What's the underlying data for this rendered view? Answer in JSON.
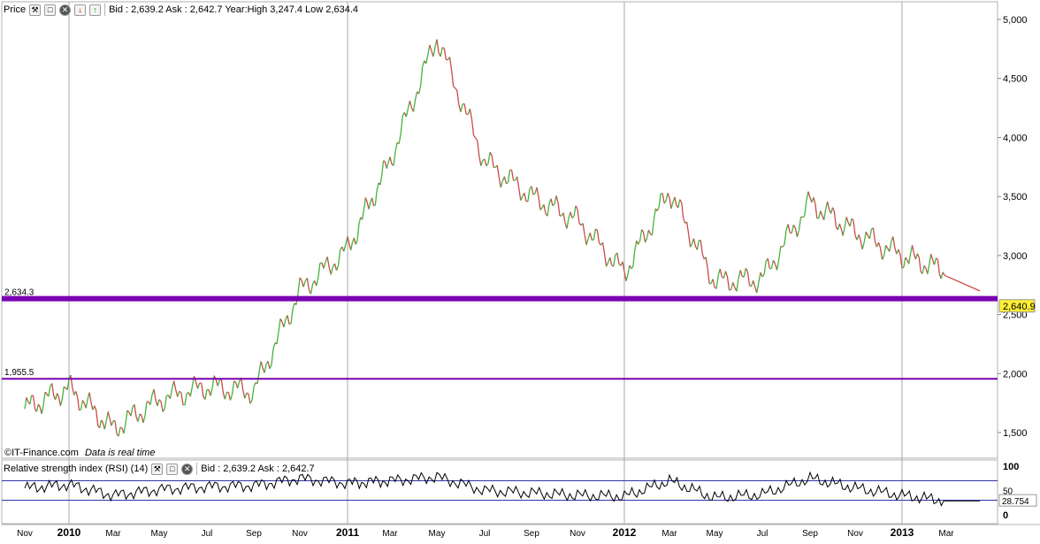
{
  "price_panel": {
    "title": "Price",
    "quote": "Bid : 2,639.2 Ask : 2,642.7 Year:High 3,247.4 Low 2,634.4",
    "watermark_source": "©IT-Finance.com",
    "watermark_note": "Data is real time",
    "last_value_badge": "2,640.9",
    "y_ticks": [
      "5,000",
      "4,500",
      "4,000",
      "3,500",
      "3,000",
      "2,500",
      "2,000",
      "1,500"
    ],
    "levels": [
      {
        "label": "2,634.3",
        "value": 2634.3,
        "color": "#7a00b3",
        "weight": "heavy"
      },
      {
        "label": "1,955.5",
        "value": 1955.5,
        "color": "#7a00b3",
        "weight": "light"
      }
    ],
    "up_color": "#44b33c",
    "down_color": "#cc4a4a"
  },
  "rsi_panel": {
    "title": "Relative strength index (RSI) (14)",
    "quote": "Bid : 2,639.2 Ask : 2,642.7",
    "y_ticks": [
      "100",
      "50",
      "0"
    ],
    "last_value_badge": "28.754",
    "bands": [
      70,
      30
    ],
    "line_color": "#000000",
    "band_color": "#3333aa",
    "overbought_fill": "#d9a0c8"
  },
  "x_axis": {
    "labels": [
      "Nov",
      "2010",
      "Mar",
      "May",
      "Jul",
      "Sep",
      "Nov",
      "2011",
      "Mar",
      "May",
      "Jul",
      "Sep",
      "Nov",
      "2012",
      "Mar",
      "May",
      "Jul",
      "Sep",
      "Nov",
      "2013",
      "Mar"
    ],
    "bold_labels": [
      "2010",
      "2011",
      "2012",
      "2013"
    ]
  },
  "chart_data": {
    "type": "line",
    "title": "",
    "xlabel": "",
    "ylabel": "",
    "ylim": [
      1350,
      5100
    ],
    "x": [
      "2009-11",
      "2010-01",
      "2010-03",
      "2010-05",
      "2010-07",
      "2010-09",
      "2010-11",
      "2011-01",
      "2011-03",
      "2011-05",
      "2011-07",
      "2011-09",
      "2011-11",
      "2012-01",
      "2012-03",
      "2012-05",
      "2012-07",
      "2012-09",
      "2012-11",
      "2013-01",
      "2013-03"
    ],
    "series": [
      {
        "values": [
          1700,
          1880,
          1530,
          1780,
          1890,
          1850,
          2700,
          3050,
          3800,
          4850,
          3800,
          3500,
          3300,
          2850,
          3550,
          2780,
          2800,
          3450,
          3200,
          3000,
          2870
        ]
      }
    ],
    "rsi": {
      "ylim": [
        0,
        100
      ],
      "values": [
        55,
        62,
        40,
        52,
        58,
        60,
        75,
        65,
        70,
        78,
        50,
        45,
        40,
        38,
        70,
        35,
        42,
        75,
        55,
        40,
        29
      ]
    }
  }
}
